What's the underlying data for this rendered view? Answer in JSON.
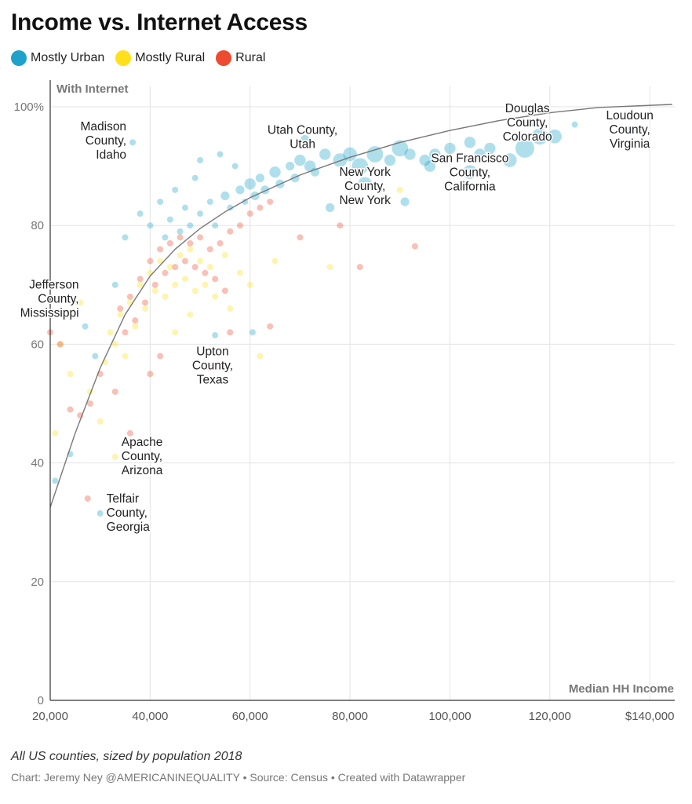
{
  "header": {
    "title": "Income vs. Internet Access"
  },
  "legend": [
    {
      "label": "Mostly Urban",
      "color": "#1ea2c9"
    },
    {
      "label": "Mostly Rural",
      "color": "#ffe01a"
    },
    {
      "label": "Rural",
      "color": "#ed4a2f"
    }
  ],
  "footer": {
    "note": "All US counties, sized by population 2018",
    "credit": "Chart: Jeremy Ney @AMERICANINEQUALITY • Source: Census • Created with Datawrapper"
  },
  "chart_data": {
    "type": "scatter",
    "title": "Income vs. Internet Access",
    "xlabel": "Median HH Income",
    "ylabel": "With Internet",
    "xlim": [
      20000,
      145000
    ],
    "ylim": [
      0,
      100
    ],
    "x_ticks": [
      {
        "value": 20000,
        "label": "20,000"
      },
      {
        "value": 40000,
        "label": "40,000"
      },
      {
        "value": 60000,
        "label": "60,000"
      },
      {
        "value": 80000,
        "label": "80,000"
      },
      {
        "value": 100000,
        "label": "100,000"
      },
      {
        "value": 120000,
        "label": "120,000"
      },
      {
        "value": 140000,
        "label": "$140,000"
      }
    ],
    "y_ticks": [
      {
        "value": 0,
        "label": "0"
      },
      {
        "value": 20,
        "label": "20"
      },
      {
        "value": 40,
        "label": "40"
      },
      {
        "value": 60,
        "label": "60"
      },
      {
        "value": 80,
        "label": "80"
      },
      {
        "value": 100,
        "label": "100%"
      }
    ],
    "grid": true,
    "legend_position": "top-left",
    "trend_line": [
      [
        20000,
        32.5
      ],
      [
        25000,
        45
      ],
      [
        30000,
        56
      ],
      [
        35000,
        65
      ],
      [
        40000,
        71.5
      ],
      [
        45000,
        76
      ],
      [
        50000,
        79.5
      ],
      [
        55000,
        82.3
      ],
      [
        60000,
        84.7
      ],
      [
        70000,
        88.5
      ],
      [
        80000,
        91.5
      ],
      [
        90000,
        94
      ],
      [
        100000,
        96
      ],
      [
        110000,
        97.7
      ],
      [
        120000,
        99
      ],
      [
        130000,
        99.9
      ],
      [
        144500,
        100.4
      ]
    ],
    "series": [
      {
        "name": "Mostly Urban",
        "color": "#1ea2c9",
        "points": [
          [
            48000,
            80,
            1
          ],
          [
            50000,
            82,
            1
          ],
          [
            52000,
            84,
            1
          ],
          [
            55000,
            85,
            1.5
          ],
          [
            58000,
            86,
            1.5
          ],
          [
            60000,
            87,
            2
          ],
          [
            62000,
            88,
            1.5
          ],
          [
            65000,
            89,
            2
          ],
          [
            68000,
            90,
            1.5
          ],
          [
            70000,
            91,
            2
          ],
          [
            72000,
            90,
            2
          ],
          [
            75000,
            92,
            2
          ],
          [
            78000,
            91,
            2.5
          ],
          [
            80000,
            92,
            2.5
          ],
          [
            82000,
            90,
            3
          ],
          [
            85000,
            92,
            3
          ],
          [
            88000,
            91,
            2
          ],
          [
            90000,
            93,
            3
          ],
          [
            92000,
            92,
            2
          ],
          [
            95000,
            91,
            2
          ],
          [
            97000,
            92,
            2
          ],
          [
            100000,
            93,
            2
          ],
          [
            104000,
            94,
            2
          ],
          [
            106000,
            92,
            2
          ],
          [
            108000,
            93,
            2
          ],
          [
            112000,
            91,
            2.5
          ],
          [
            115000,
            93,
            3.5
          ],
          [
            118000,
            95,
            3
          ],
          [
            121000,
            95,
            2.5
          ],
          [
            117000,
            97,
            1
          ],
          [
            125000,
            97,
            1
          ],
          [
            136000,
            96,
            1.5
          ],
          [
            104000,
            89,
            2.5
          ],
          [
            96000,
            90,
            2
          ],
          [
            91000,
            84,
            1.5
          ],
          [
            83000,
            87,
            2.5
          ],
          [
            76000,
            83,
            1.5
          ],
          [
            86000,
            86,
            1
          ],
          [
            44000,
            81,
            1
          ],
          [
            46000,
            79,
            1
          ],
          [
            42000,
            84,
            1
          ],
          [
            40000,
            80,
            1
          ],
          [
            43000,
            78,
            1
          ],
          [
            47000,
            83,
            1
          ],
          [
            53000,
            80,
            1
          ],
          [
            56000,
            83,
            1
          ],
          [
            59000,
            84,
            1
          ],
          [
            61000,
            85,
            1.5
          ],
          [
            63000,
            86,
            1.5
          ],
          [
            66000,
            87,
            1.5
          ],
          [
            69000,
            88,
            1.5
          ],
          [
            73000,
            89,
            1.5
          ],
          [
            71000,
            94.5,
            1.5
          ],
          [
            36500,
            94,
            1
          ],
          [
            30000,
            31.5,
            1
          ],
          [
            24000,
            41.5,
            1
          ],
          [
            21000,
            37,
            1
          ],
          [
            53000,
            61.5,
            1
          ],
          [
            60500,
            62,
            1
          ],
          [
            49000,
            88,
            1
          ],
          [
            45000,
            86,
            1
          ],
          [
            38000,
            82,
            1
          ],
          [
            35000,
            78,
            1
          ],
          [
            27000,
            63,
            1
          ],
          [
            29000,
            58,
            1
          ],
          [
            33000,
            70,
            1
          ],
          [
            57000,
            90,
            1
          ],
          [
            54000,
            92,
            1
          ],
          [
            50000,
            91,
            1
          ]
        ]
      },
      {
        "name": "Mostly Rural",
        "color": "#ffe01a",
        "points": [
          [
            32000,
            62,
            1
          ],
          [
            34000,
            65,
            1
          ],
          [
            36000,
            67,
            1
          ],
          [
            38000,
            70,
            1
          ],
          [
            40000,
            72,
            1
          ],
          [
            42000,
            74,
            1
          ],
          [
            44000,
            73,
            1
          ],
          [
            46000,
            75,
            1
          ],
          [
            48000,
            76,
            1
          ],
          [
            50000,
            74,
            1
          ],
          [
            52000,
            73,
            1
          ],
          [
            55000,
            75,
            1
          ],
          [
            58000,
            72,
            1
          ],
          [
            60000,
            70,
            1
          ],
          [
            31000,
            57,
            1
          ],
          [
            33000,
            60,
            1
          ],
          [
            35000,
            58,
            1
          ],
          [
            37000,
            63,
            1
          ],
          [
            39000,
            66,
            1
          ],
          [
            41000,
            69,
            1
          ],
          [
            43000,
            68,
            1
          ],
          [
            45000,
            70,
            1
          ],
          [
            47000,
            71,
            1
          ],
          [
            49000,
            69,
            1
          ],
          [
            51000,
            70,
            1
          ],
          [
            53000,
            68,
            1
          ],
          [
            56000,
            66,
            1
          ],
          [
            62000,
            58,
            1
          ],
          [
            76000,
            73,
            1
          ],
          [
            65000,
            74,
            1
          ],
          [
            30000,
            47,
            1
          ],
          [
            33000,
            41,
            1
          ],
          [
            21000,
            45,
            1
          ],
          [
            26000,
            67,
            1
          ],
          [
            28000,
            52,
            1
          ],
          [
            22000,
            60,
            1
          ],
          [
            24000,
            55,
            1
          ],
          [
            45000,
            62,
            1
          ],
          [
            48000,
            65,
            1
          ],
          [
            90000,
            86,
            1
          ]
        ]
      },
      {
        "name": "Rural",
        "color": "#ed4a2f",
        "points": [
          [
            34000,
            66,
            1
          ],
          [
            36000,
            68,
            1
          ],
          [
            38000,
            71,
            1
          ],
          [
            40000,
            74,
            1
          ],
          [
            42000,
            76,
            1
          ],
          [
            44000,
            77,
            1
          ],
          [
            46000,
            78,
            1
          ],
          [
            48000,
            77,
            1
          ],
          [
            50000,
            78,
            1
          ],
          [
            52000,
            76,
            1
          ],
          [
            54000,
            77,
            1
          ],
          [
            56000,
            79,
            1
          ],
          [
            58000,
            80,
            1
          ],
          [
            60000,
            82,
            1
          ],
          [
            62000,
            83,
            1
          ],
          [
            64000,
            84,
            1
          ],
          [
            35000,
            62,
            1
          ],
          [
            37000,
            64,
            1
          ],
          [
            39000,
            67,
            1
          ],
          [
            41000,
            70,
            1
          ],
          [
            43000,
            72,
            1
          ],
          [
            45000,
            73,
            1
          ],
          [
            47000,
            74,
            1
          ],
          [
            49000,
            73,
            1
          ],
          [
            51000,
            72,
            1
          ],
          [
            53000,
            71,
            1
          ],
          [
            55000,
            69,
            1
          ],
          [
            30000,
            55,
            1
          ],
          [
            28000,
            50,
            1
          ],
          [
            26000,
            48,
            1
          ],
          [
            24000,
            49,
            1
          ],
          [
            22000,
            60,
            1
          ],
          [
            20000,
            62,
            1
          ],
          [
            27500,
            34,
            1
          ],
          [
            36000,
            45,
            1
          ],
          [
            33000,
            52,
            1
          ],
          [
            40000,
            55,
            1
          ],
          [
            42000,
            58,
            1
          ],
          [
            52000,
            56,
            1
          ],
          [
            56000,
            62,
            1
          ],
          [
            64000,
            63,
            1
          ],
          [
            82000,
            73,
            1
          ],
          [
            93000,
            76.5,
            1
          ],
          [
            78000,
            80,
            1
          ],
          [
            70000,
            78,
            1
          ]
        ]
      }
    ],
    "annotations": [
      {
        "lines": [
          "Douglas",
          "County,",
          "Colorado"
        ],
        "x": 115500,
        "y": 97.2,
        "anchor": "middle"
      },
      {
        "lines": [
          "Utah County,",
          "Utah"
        ],
        "x": 70500,
        "y": 94.8,
        "anchor": "middle"
      },
      {
        "lines": [
          "Madison",
          "County,",
          "Idaho"
        ],
        "x": 36500,
        "y": 94.2,
        "anchor": "end"
      },
      {
        "lines": [
          "Loudoun",
          "County,",
          "Virginia"
        ],
        "x": 136000,
        "y": 96,
        "anchor": "middle"
      },
      {
        "lines": [
          "San Francisco",
          "County,",
          "California"
        ],
        "x": 104000,
        "y": 88.8,
        "anchor": "middle"
      },
      {
        "lines": [
          "New York",
          "County,",
          "New York"
        ],
        "x": 83000,
        "y": 86.5,
        "anchor": "middle"
      },
      {
        "lines": [
          "Jefferson",
          "County,",
          "Mississippi"
        ],
        "x": 27000,
        "y": 67.5,
        "anchor": "end"
      },
      {
        "lines": [
          "Upton",
          "County,",
          "Texas"
        ],
        "x": 52500,
        "y": 56.3,
        "anchor": "middle"
      },
      {
        "lines": [
          "Apache",
          "County,",
          "Arizona"
        ],
        "x": 33000,
        "y": 41,
        "anchor": "start"
      },
      {
        "lines": [
          "Telfair",
          "County,",
          "Georgia"
        ],
        "x": 30000,
        "y": 31.5,
        "anchor": "start"
      }
    ]
  }
}
